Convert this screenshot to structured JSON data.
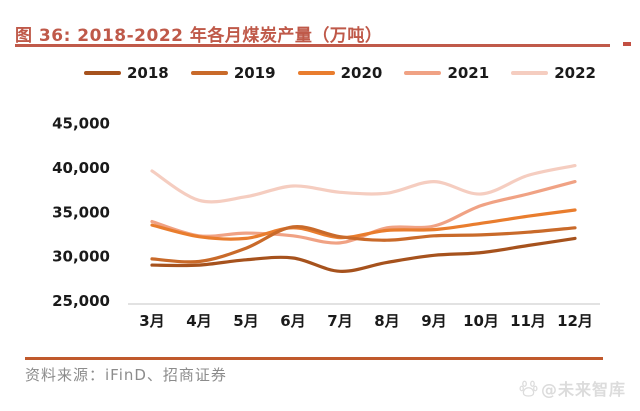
{
  "title": {
    "text": "图 36:  2018-2022 年各月煤炭产量（万吨）"
  },
  "footer": {
    "source": "资料来源：iFinD、招商证券",
    "watermark": "@未来智库"
  },
  "colors": {
    "title_accent": "#bf5949",
    "footer_rule": "#c0592c",
    "axis_line": "#d9d9d9",
    "tick_text": "#1a1a1a",
    "source_text": "#8c8c8c",
    "watermark_text": "#dcdcdc"
  },
  "chart_data": {
    "type": "line",
    "title": "2018-2022 年各月煤炭产量（万吨）",
    "xlabel": "",
    "ylabel": "万吨",
    "ylim": [
      25000,
      45000
    ],
    "y_ticks": [
      45000,
      40000,
      35000,
      30000,
      25000
    ],
    "y_tick_labels": [
      "45,000",
      "40,000",
      "35,000",
      "30,000",
      "25,000"
    ],
    "grid": false,
    "legend_position": "top",
    "categories": [
      "3月",
      "4月",
      "5月",
      "6月",
      "7月",
      "8月",
      "9月",
      "10月",
      "11月",
      "12月"
    ],
    "series": [
      {
        "name": "2018",
        "color": "#a6521d",
        "values": [
          29000,
          29000,
          29600,
          29800,
          28300,
          29300,
          30100,
          30400,
          31200,
          32000
        ]
      },
      {
        "name": "2019",
        "color": "#c96a2a",
        "values": [
          29700,
          29400,
          30900,
          33300,
          32200,
          31800,
          32300,
          32400,
          32700,
          33200
        ]
      },
      {
        "name": "2020",
        "color": "#e97d2e",
        "values": [
          33500,
          32200,
          32000,
          33200,
          32100,
          32900,
          33000,
          33700,
          34500,
          35200
        ]
      },
      {
        "name": "2021",
        "color": "#f0a284",
        "values": [
          33900,
          32300,
          32600,
          32300,
          31500,
          33200,
          33400,
          35700,
          37000,
          38400
        ]
      },
      {
        "name": "2022",
        "color": "#f5cdc0",
        "values": [
          39600,
          36300,
          36700,
          37900,
          37200,
          37100,
          38400,
          37000,
          39100,
          40200
        ]
      }
    ]
  }
}
